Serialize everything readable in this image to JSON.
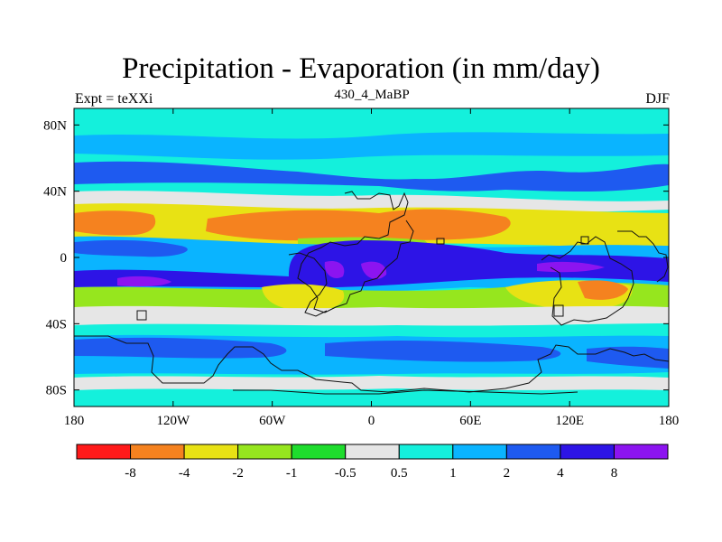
{
  "chart_data": {
    "type": "heatmap",
    "title": "Precipitation - Evaporation (in mm/day)",
    "left_string": "Expt = teXXi",
    "center_string": "430_4_MaBP",
    "right_string": "DJF",
    "x_ticks": [
      "180",
      "120W",
      "60W",
      "0",
      "60E",
      "120E",
      "180"
    ],
    "y_ticks": [
      "80N",
      "40N",
      "0",
      "40S",
      "80S"
    ],
    "colorbar": {
      "labels": [
        "-8",
        "-4",
        "-2",
        "-1",
        "-0.5",
        "0.5",
        "1",
        "2",
        "4",
        "8"
      ],
      "colors": [
        "#ff1a1a",
        "#f5821f",
        "#e8e214",
        "#96e61e",
        "#1edc2d",
        "#e6e6e6",
        "#14f0dc",
        "#0ab4ff",
        "#1e5af0",
        "#2d14e6",
        "#8c14f0"
      ]
    }
  }
}
